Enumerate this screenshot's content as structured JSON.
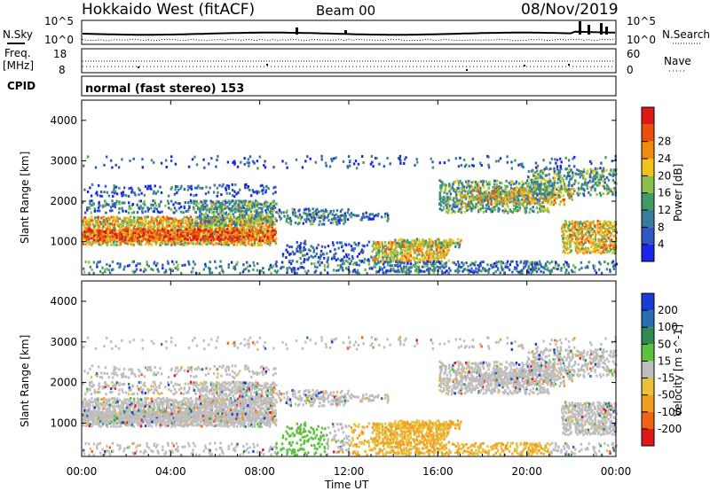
{
  "header": {
    "station": "Hokkaido West (fitACF)",
    "beam": "Beam 00",
    "date": "08/Nov/2019"
  },
  "top_panel": {
    "nsky_label": "N.Sky",
    "nsearch_label": "N.Search",
    "freq_label_1": "Freq.",
    "freq_label_2": "[MHz]",
    "nave_label": "Nave",
    "cpid_label": "CPID",
    "cpid_text": "normal (fast stereo) 153",
    "noise_left_ticks": [
      "10^5",
      "10^0"
    ],
    "noise_right_ticks": [
      "10^5",
      "10^0"
    ],
    "freq_ticks": [
      "18",
      "8"
    ],
    "nave_ticks": [
      "60",
      "0"
    ]
  },
  "chart_data": [
    {
      "type": "heatmap",
      "name": "power",
      "ylabel": "Slant Range [km]",
      "ylim": [
        180,
        4500
      ],
      "yticks": [
        1000,
        2000,
        3000,
        4000
      ],
      "xlim_hours": [
        0,
        24
      ],
      "colorbar": {
        "label": "Power [dB]",
        "ticks": [
          "4",
          "8",
          "12",
          "16",
          "20",
          "24",
          "28"
        ],
        "colors": [
          "#1e24e6",
          "#2f57c4",
          "#3a7d9a",
          "#3f9a66",
          "#8dc04a",
          "#f2c21a",
          "#f08a10",
          "#e8500e",
          "#e01818"
        ]
      }
    },
    {
      "type": "heatmap",
      "name": "velocity",
      "ylabel": "Slant Range [km]",
      "ylim": [
        180,
        4500
      ],
      "yticks": [
        1000,
        2000,
        3000,
        4000
      ],
      "xlabel": "Time UT",
      "xticks": [
        "00:00",
        "04:00",
        "08:00",
        "12:00",
        "16:00",
        "20:00",
        "00:00"
      ],
      "colorbar": {
        "label": "Velocity [m s^-1]",
        "ticks": [
          "200",
          "100",
          "50",
          "15",
          "-15",
          "-50",
          "-100",
          "-200"
        ],
        "colors": [
          "#1a3bd6",
          "#2a6eb0",
          "#2f8a52",
          "#5cc23c",
          "#bdbdbd",
          "#e8c03a",
          "#f0a020",
          "#f06414",
          "#e01818"
        ]
      }
    }
  ]
}
